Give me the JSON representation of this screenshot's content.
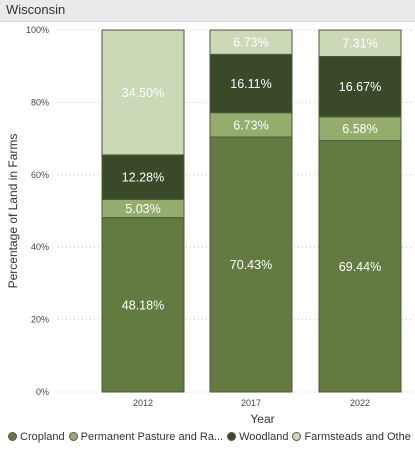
{
  "header": {
    "title": "Wisconsin"
  },
  "chart_data": {
    "type": "bar",
    "stacked": true,
    "categories": [
      "2012",
      "2017",
      "2022"
    ],
    "series": [
      {
        "name": "Cropland",
        "values": [
          48.18,
          70.43,
          69.44
        ],
        "color": "#637b41",
        "labels": [
          "48.18%",
          "70.43%",
          "69.44%"
        ]
      },
      {
        "name": "Permanent Pasture and Ra...",
        "values": [
          5.03,
          6.73,
          6.58
        ],
        "color": "#94ad6c",
        "labels": [
          "5.03%",
          "6.73%",
          "6.58%"
        ]
      },
      {
        "name": "Woodland",
        "values": [
          12.28,
          16.11,
          16.67
        ],
        "color": "#3a4a28",
        "labels": [
          "12.28%",
          "16.11%",
          "16.67%"
        ]
      },
      {
        "name": "Farmsteads and Othe",
        "values": [
          34.5,
          6.73,
          7.31
        ],
        "color": "#cbd9b7",
        "labels": [
          "34.50%",
          "6.73%",
          "7.31%"
        ]
      }
    ],
    "xlabel": "Year",
    "ylabel": "Percentage of Land in Farms",
    "ylim": [
      0,
      100
    ],
    "yticks": [
      "0%",
      "20%",
      "40%",
      "60%",
      "80%",
      "100%"
    ],
    "grid": true,
    "legend": "bottom"
  }
}
